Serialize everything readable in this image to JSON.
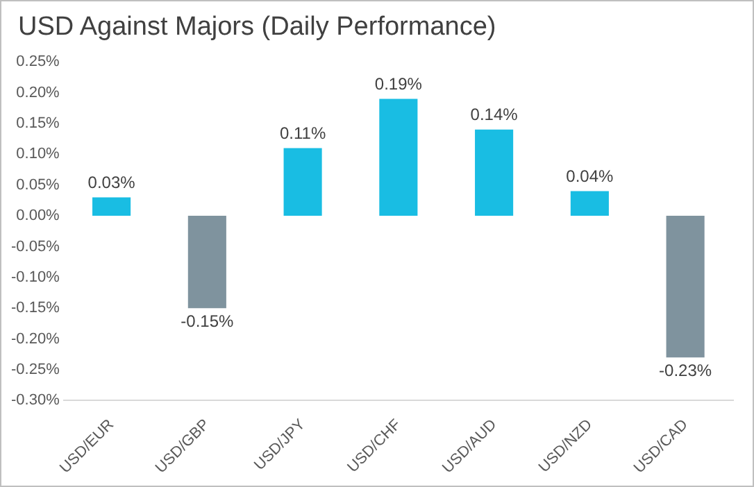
{
  "chart_data": {
    "type": "bar",
    "title": "USD Against Majors (Daily Performance)",
    "categories": [
      "USD/EUR",
      "USD/GBP",
      "USD/JPY",
      "USD/CHF",
      "USD/AUD",
      "USD/NZD",
      "USD/CAD"
    ],
    "values": [
      0.03,
      -0.15,
      0.11,
      0.19,
      0.14,
      0.04,
      -0.23
    ],
    "colors": [
      "#19bde3",
      "#7f939e",
      "#19bde3",
      "#19bde3",
      "#19bde3",
      "#19bde3",
      "#7f939e"
    ],
    "value_labels": [
      "0.03%",
      "-0.15%",
      "0.11%",
      "0.19%",
      "0.14%",
      "0.04%",
      "-0.23%"
    ],
    "ylim": [
      -0.3,
      0.25
    ],
    "yticks": [
      {
        "value": -0.3,
        "label": "-0.30%"
      },
      {
        "value": -0.25,
        "label": "-0.25%"
      },
      {
        "value": -0.2,
        "label": "-0.20%"
      },
      {
        "value": -0.15,
        "label": "-0.15%"
      },
      {
        "value": -0.1,
        "label": "-0.10%"
      },
      {
        "value": -0.05,
        "label": "-0.05%"
      },
      {
        "value": 0,
        "label": "0.00%"
      },
      {
        "value": 0.05,
        "label": "0.05%"
      },
      {
        "value": 0.1,
        "label": "0.10%"
      },
      {
        "value": 0.15,
        "label": "0.15%"
      },
      {
        "value": 0.2,
        "label": "0.20%"
      },
      {
        "value": 0.25,
        "label": "0.25%"
      }
    ],
    "grid": false,
    "legend": false
  }
}
